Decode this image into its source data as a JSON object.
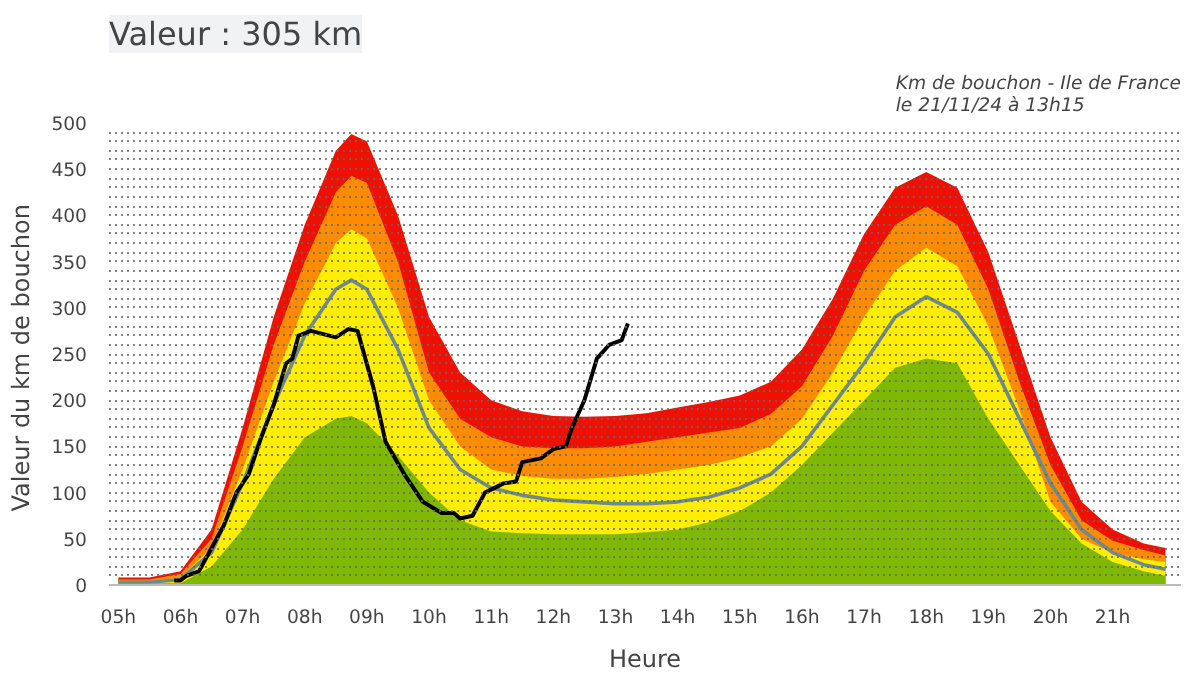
{
  "chart_data": {
    "type": "area",
    "title": "Valeur : 305 km",
    "subtitle": "Km de bouchon - Ile de France\nle 21/11/24 à 13h15",
    "xlabel": "Heure",
    "ylabel": "Valeur du  km de bouchon",
    "x": [
      5,
      5.5,
      6,
      6.5,
      7,
      7.5,
      8,
      8.5,
      8.75,
      9,
      9.5,
      10,
      10.5,
      11,
      11.5,
      12,
      12.5,
      13,
      13.5,
      14,
      14.5,
      15,
      15.5,
      16,
      16.5,
      17,
      17.5,
      18,
      18.5,
      19,
      19.5,
      20,
      20.5,
      21,
      21.5,
      21.85
    ],
    "series": [
      {
        "color": "#ee1100",
        "values": [
          8,
          8,
          15,
          60,
          170,
          290,
          390,
          470,
          488,
          480,
          400,
          290,
          230,
          200,
          188,
          183,
          182,
          183,
          186,
          192,
          198,
          205,
          220,
          255,
          310,
          380,
          430,
          447,
          430,
          360,
          260,
          160,
          90,
          60,
          45,
          40
        ]
      },
      {
        "color": "#ff8c00",
        "values": [
          6,
          6,
          12,
          50,
          150,
          260,
          350,
          425,
          443,
          435,
          350,
          230,
          180,
          160,
          150,
          148,
          148,
          150,
          155,
          160,
          165,
          170,
          185,
          215,
          270,
          340,
          390,
          410,
          390,
          320,
          220,
          130,
          70,
          48,
          38,
          32
        ]
      },
      {
        "color": "#ffee00",
        "values": [
          4,
          4,
          8,
          40,
          125,
          220,
          305,
          370,
          385,
          375,
          300,
          200,
          150,
          125,
          118,
          115,
          115,
          117,
          120,
          125,
          130,
          138,
          150,
          180,
          230,
          290,
          340,
          365,
          345,
          280,
          190,
          90,
          50,
          35,
          28,
          25
        ]
      },
      {
        "type": "line",
        "color": "#6e8a8a",
        "values": [
          3,
          3,
          6,
          35,
          110,
          195,
          270,
          320,
          330,
          320,
          255,
          170,
          125,
          105,
          97,
          92,
          90,
          88,
          88,
          90,
          95,
          105,
          120,
          150,
          195,
          240,
          290,
          312,
          295,
          250,
          180,
          110,
          60,
          35,
          22,
          17
        ]
      },
      {
        "color": "#7fb800",
        "values": [
          2,
          2,
          2,
          20,
          60,
          115,
          160,
          180,
          183,
          175,
          140,
          100,
          70,
          58,
          56,
          55,
          55,
          55,
          57,
          60,
          68,
          80,
          100,
          130,
          165,
          200,
          235,
          245,
          240,
          180,
          130,
          80,
          45,
          25,
          15,
          10
        ]
      },
      {
        "type": "line",
        "color": "#000000",
        "x": [
          5.9,
          6,
          6.1,
          6.3,
          6.5,
          6.7,
          6.9,
          7.1,
          7.3,
          7.5,
          7.7,
          7.8,
          7.9,
          8.1,
          8.5,
          8.7,
          8.85,
          9.1,
          9.3,
          9.6,
          9.9,
          10.2,
          10.4,
          10.5,
          10.7,
          10.9,
          11.2,
          11.4,
          11.5,
          11.8,
          12,
          12.2,
          12.3,
          12.5,
          12.7,
          12.9,
          13.1,
          13.2
        ],
        "values": [
          5,
          5,
          10,
          15,
          40,
          65,
          100,
          120,
          160,
          195,
          240,
          245,
          270,
          275,
          268,
          277,
          275,
          215,
          155,
          120,
          90,
          78,
          78,
          72,
          75,
          100,
          110,
          112,
          133,
          137,
          147,
          150,
          170,
          200,
          245,
          260,
          265,
          283
        ]
      }
    ],
    "xlim": [
      4.85,
      22.1
    ],
    "ylim": [
      0,
      500
    ],
    "xticks": [
      {
        "value": 5,
        "label": "05h"
      },
      {
        "value": 6,
        "label": "06h"
      },
      {
        "value": 7,
        "label": "07h"
      },
      {
        "value": 8,
        "label": "08h"
      },
      {
        "value": 9,
        "label": "09h"
      },
      {
        "value": 10,
        "label": "10h"
      },
      {
        "value": 11,
        "label": "11h"
      },
      {
        "value": 12,
        "label": "12h"
      },
      {
        "value": 13,
        "label": "13h"
      },
      {
        "value": 14,
        "label": "14h"
      },
      {
        "value": 15,
        "label": "15h"
      },
      {
        "value": 16,
        "label": "16h"
      },
      {
        "value": 17,
        "label": "17h"
      },
      {
        "value": 18,
        "label": "18h"
      },
      {
        "value": 19,
        "label": "19h"
      },
      {
        "value": 20,
        "label": "20h"
      },
      {
        "value": 21,
        "label": "21h"
      }
    ],
    "yticks": [
      0,
      {
        "value": 10,
        "label": null
      },
      {
        "value": 20,
        "label": null
      },
      {
        "value": 30,
        "label": null
      },
      {
        "value": 40,
        "label": null
      },
      50,
      {
        "value": 60,
        "label": null
      },
      {
        "value": 70,
        "label": null
      },
      {
        "value": 80,
        "label": null
      },
      {
        "value": 90,
        "label": null
      },
      100,
      {
        "value": 110,
        "label": null
      },
      {
        "value": 120,
        "label": null
      },
      {
        "value": 130,
        "label": null
      },
      {
        "value": 140,
        "label": null
      },
      150,
      {
        "value": 160,
        "label": null
      },
      {
        "value": 170,
        "label": null
      },
      {
        "value": 180,
        "label": null
      },
      {
        "value": 190,
        "label": null
      },
      200,
      {
        "value": 210,
        "label": null
      },
      {
        "value": 220,
        "label": null
      },
      {
        "value": 230,
        "label": null
      },
      {
        "value": 240,
        "label": null
      },
      250,
      {
        "value": 260,
        "label": null
      },
      {
        "value": 270,
        "label": null
      },
      {
        "value": 280,
        "label": null
      },
      {
        "value": 290,
        "label": null
      },
      300,
      {
        "value": 310,
        "label": null
      },
      {
        "value": 320,
        "label": null
      },
      {
        "value": 330,
        "label": null
      },
      {
        "value": 340,
        "label": null
      },
      350,
      {
        "value": 360,
        "label": null
      },
      {
        "value": 370,
        "label": null
      },
      {
        "value": 380,
        "label": null
      },
      {
        "value": 390,
        "label": null
      },
      400,
      {
        "value": 410,
        "label": null
      },
      {
        "value": 420,
        "label": null
      },
      {
        "value": 430,
        "label": null
      },
      {
        "value": 440,
        "label": null
      },
      450,
      {
        "value": 460,
        "label": null
      },
      {
        "value": 470,
        "label": null
      },
      {
        "value": 480,
        "label": null
      },
      {
        "value": 490,
        "label": null
      },
      500
    ],
    "grid": "y"
  }
}
